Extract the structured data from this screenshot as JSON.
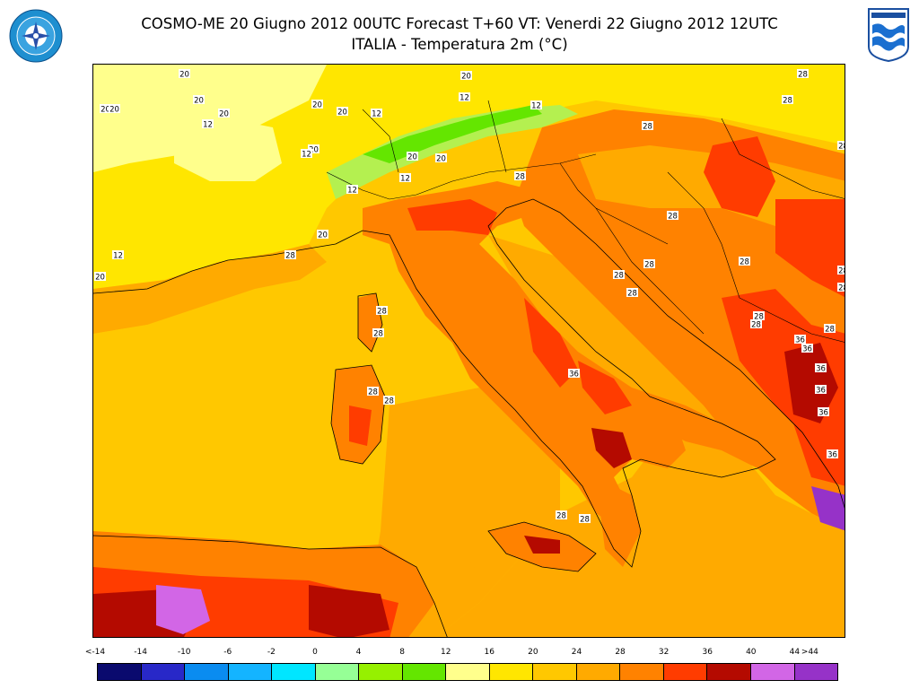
{
  "header": {
    "title_line1": "COSMO-ME 20 Giugno 2012 00UTC Forecast T+60 VT: Venerdi 22 Giugno 2012 12UTC",
    "title_line2": "ITALIA - Temperatura 2m (°C)"
  },
  "logos": {
    "left_icon": "air-force-meteorological-service-emblem",
    "right_icon": "cnmca-emblem"
  },
  "map": {
    "contour_labels": [
      {
        "text": "20"
      },
      {
        "text": "20"
      },
      {
        "text": "20"
      },
      {
        "text": "20"
      },
      {
        "text": "20"
      },
      {
        "text": "20"
      },
      {
        "text": "20"
      },
      {
        "text": "20"
      },
      {
        "text": "20"
      },
      {
        "text": "20"
      },
      {
        "text": "20"
      },
      {
        "text": "20"
      },
      {
        "text": "20"
      },
      {
        "text": "12"
      },
      {
        "text": "12"
      },
      {
        "text": "12"
      },
      {
        "text": "12"
      },
      {
        "text": "12"
      },
      {
        "text": "12"
      },
      {
        "text": "12"
      },
      {
        "text": "12"
      },
      {
        "text": "28"
      },
      {
        "text": "28"
      },
      {
        "text": "28"
      },
      {
        "text": "28"
      },
      {
        "text": "28"
      },
      {
        "text": "28"
      },
      {
        "text": "28"
      },
      {
        "text": "28"
      },
      {
        "text": "28"
      },
      {
        "text": "28"
      },
      {
        "text": "28"
      },
      {
        "text": "28"
      },
      {
        "text": "28"
      },
      {
        "text": "28"
      },
      {
        "text": "28"
      },
      {
        "text": "28"
      },
      {
        "text": "28"
      },
      {
        "text": "28"
      },
      {
        "text": "28"
      },
      {
        "text": "28"
      },
      {
        "text": "28"
      },
      {
        "text": "28"
      },
      {
        "text": "36"
      },
      {
        "text": "36"
      },
      {
        "text": "36"
      },
      {
        "text": "36"
      },
      {
        "text": "36"
      },
      {
        "text": "36"
      },
      {
        "text": "36"
      },
      {
        "text": "36"
      }
    ]
  },
  "colorbar": {
    "labels": [
      "<-14",
      "-14",
      "-10",
      "-6",
      "-2",
      "0",
      "4",
      "8",
      "12",
      "16",
      "20",
      "24",
      "28",
      "32",
      "36",
      "40",
      "44",
      ">44"
    ],
    "colors": [
      "#0a0a6e",
      "#2828c8",
      "#0a8cf0",
      "#14b4ff",
      "#00e6ff",
      "#96ff96",
      "#96f000",
      "#64e600",
      "#ffff8c",
      "#ffe600",
      "#ffc800",
      "#ffaa00",
      "#ff8200",
      "#ff3c00",
      "#b40a00",
      "#d266e6",
      "#9632c8"
    ]
  }
}
